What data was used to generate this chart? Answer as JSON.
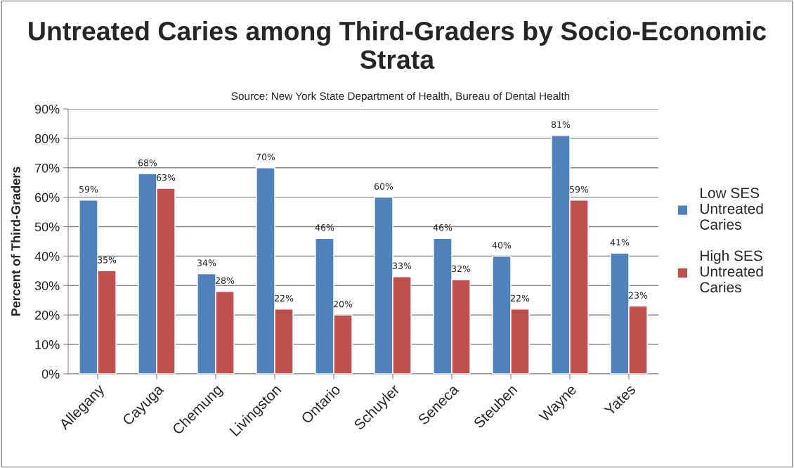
{
  "chart_data": {
    "type": "bar",
    "title": "Untreated Caries among Third-Graders by Socio-Economic Strata",
    "annotations": [
      "Source: New York State Department of Health, Bureau of Dental Health"
    ],
    "ylabel": "Percent of Third-Graders",
    "categories": [
      "Allegany",
      "Cayuga",
      "Chemung",
      "Livingston",
      "Ontario",
      "Schuyler",
      "Seneca",
      "Steuben",
      "Wayne",
      "Yates"
    ],
    "series": [
      {
        "name": "Low SES\nUntreated\nCaries",
        "color": "#4f81bd",
        "values": [
          59,
          68,
          34,
          70,
          46,
          60,
          46,
          40,
          81,
          41
        ],
        "value_labels": [
          "59%",
          "68%",
          "34%",
          "70%",
          "46%",
          "60%",
          "46%",
          "40%",
          "81%",
          "41%"
        ]
      },
      {
        "name": "High SES\nUntreated\nCaries",
        "color": "#c0504d",
        "values": [
          35,
          63,
          28,
          22,
          20,
          33,
          32,
          22,
          59,
          23
        ],
        "value_labels": [
          "35%",
          "63%",
          "28%",
          "22%",
          "20%",
          "33%",
          "32%",
          "22%",
          "59%",
          "23%"
        ]
      }
    ],
    "ylim": [
      0,
      90
    ],
    "yticks": [
      {
        "value": 0,
        "label": "0%"
      },
      {
        "value": 10,
        "label": "10%"
      },
      {
        "value": 20,
        "label": "20%"
      },
      {
        "value": 30,
        "label": "30%"
      },
      {
        "value": 40,
        "label": "40%"
      },
      {
        "value": 50,
        "label": "50%"
      },
      {
        "value": 60,
        "label": "60%"
      },
      {
        "value": 70,
        "label": "70%"
      },
      {
        "value": 80,
        "label": "80%"
      },
      {
        "value": 90,
        "label": "90%"
      }
    ],
    "grid": "y",
    "legend": "right"
  }
}
